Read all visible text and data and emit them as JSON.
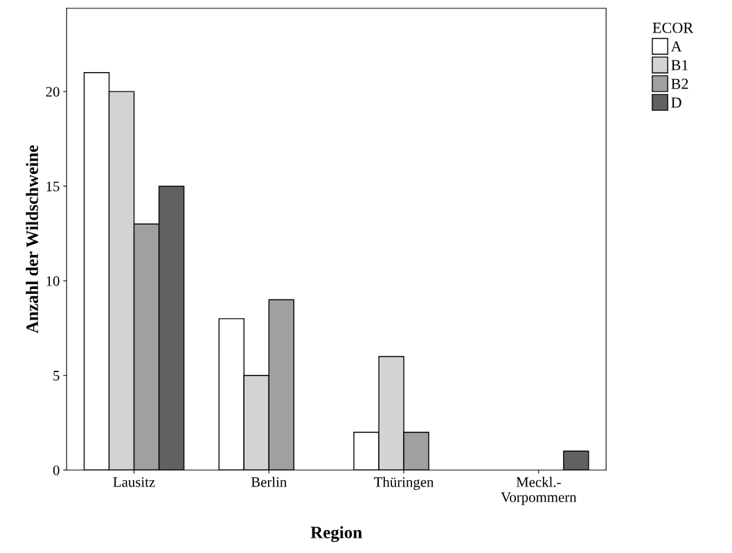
{
  "chart_data": {
    "type": "bar",
    "xlabel": "Region",
    "ylabel": "Anzahl der Wildschweine",
    "legend_title": "ECOR",
    "legend": "top right",
    "categories": [
      "Lausitz",
      "Berlin",
      "Thüringen",
      "Meckl.-\nVorpommern"
    ],
    "series": [
      {
        "name": "A",
        "color": "#ffffff",
        "values": [
          21,
          8,
          2,
          null
        ]
      },
      {
        "name": "B1",
        "color": "#d3d3d3",
        "values": [
          20,
          5,
          6,
          null
        ]
      },
      {
        "name": "B2",
        "color": "#a0a0a0",
        "values": [
          13,
          9,
          2,
          null
        ]
      },
      {
        "name": "D",
        "color": "#616161",
        "values": [
          15,
          null,
          null,
          1
        ]
      }
    ],
    "ylim": [
      0,
      24.4
    ],
    "yticks": [
      0,
      5,
      10,
      15,
      20
    ],
    "grid": false
  }
}
